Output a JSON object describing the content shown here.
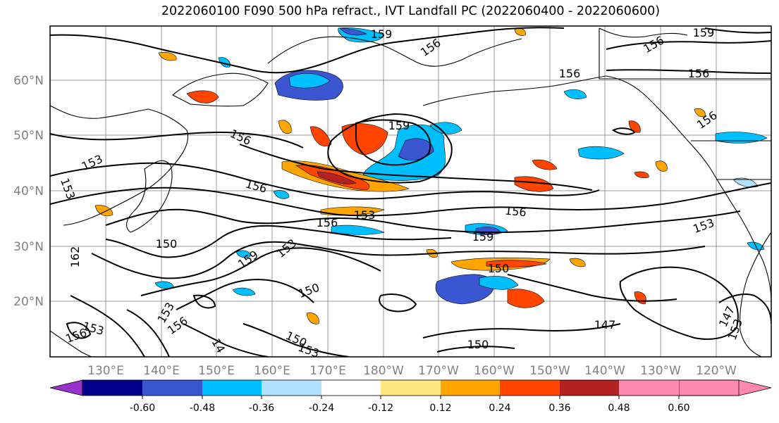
{
  "title": "2022060100 F090 500 hPa refract., IVT Landfall PC (2022060400 - 2022060600)",
  "lat_labels": [
    "60°N",
    "50°N",
    "40°N",
    "30°N",
    "20°N"
  ],
  "lon_labels": [
    "130°E",
    "140°E",
    "150°E",
    "160°E",
    "170°E",
    "180°W",
    "170°W",
    "160°W",
    "150°W",
    "140°W",
    "130°W",
    "120°W"
  ],
  "colorbar": {
    "ticks": [
      "-0.60",
      "-0.48",
      "-0.36",
      "-0.24",
      "-0.12",
      "0.12",
      "0.24",
      "0.36",
      "0.48",
      "0.60"
    ],
    "colors": [
      "#9932cc",
      "#00008b",
      "#3a56d0",
      "#00bfff",
      "#b0e2ff",
      "#ffffff",
      "#ffe680",
      "#ffa500",
      "#ff4500",
      "#b22222",
      "#ff88b0"
    ]
  },
  "contour_labels": [
    "159",
    "156",
    "159",
    "156",
    "156",
    "159",
    "156",
    "153",
    "156",
    "156",
    "153",
    "156",
    "156",
    "153",
    "159",
    "150",
    "162",
    "159",
    "153",
    "153",
    "150",
    "150",
    "147",
    "153",
    "156",
    "153",
    "156",
    "14",
    "150",
    "153",
    "150",
    "147",
    "153",
    "156"
  ]
}
